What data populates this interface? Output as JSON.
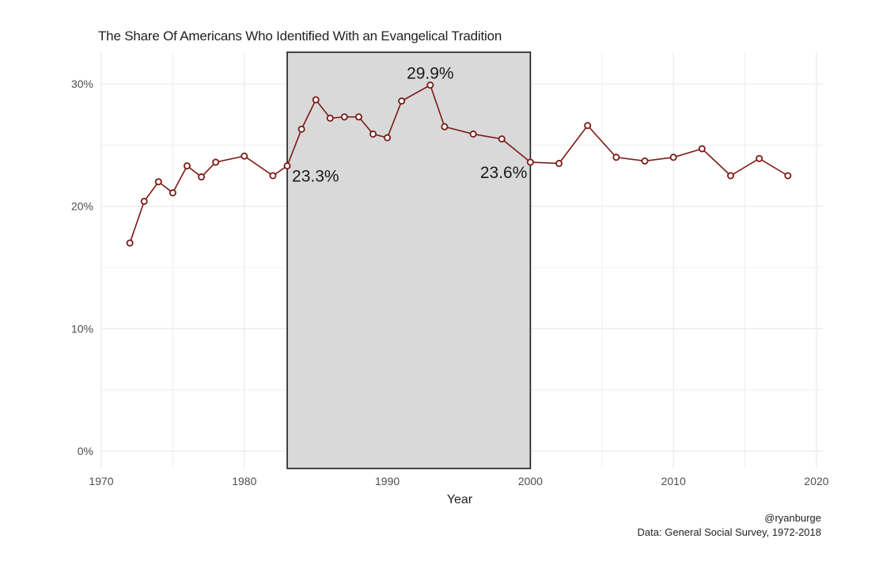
{
  "chart_data": {
    "type": "line",
    "title": "The Share Of Americans Who Identified With an Evangelical Tradition",
    "xlabel": "Year",
    "ylabel": "",
    "xlim": [
      1970,
      2020
    ],
    "ylim": [
      0,
      0.3
    ],
    "x_ticks": [
      1970,
      1980,
      1990,
      2000,
      2010,
      2020
    ],
    "x_tick_labels": [
      "1970",
      "1980",
      "1990",
      "2000",
      "2010",
      "2020"
    ],
    "y_ticks": [
      0,
      0.1,
      0.2,
      0.3
    ],
    "y_tick_labels": [
      "0%",
      "10%",
      "20%",
      "30%"
    ],
    "grid": true,
    "series": [
      {
        "x": [
          1972,
          1973,
          1974,
          1975,
          1976,
          1977,
          1978,
          1980,
          1982,
          1983,
          1984,
          1985,
          1986,
          1987,
          1988,
          1989,
          1990,
          1991,
          1993,
          1994,
          1996,
          1998,
          2000,
          2002,
          2004,
          2006,
          2008,
          2010,
          2012,
          2014,
          2016,
          2018
        ],
        "y": [
          0.17,
          0.204,
          0.22,
          0.211,
          0.233,
          0.224,
          0.236,
          0.241,
          0.225,
          0.233,
          0.263,
          0.287,
          0.272,
          0.273,
          0.273,
          0.259,
          0.256,
          0.286,
          0.299,
          0.265,
          0.259,
          0.255,
          0.236,
          0.235,
          0.266,
          0.24,
          0.237,
          0.24,
          0.247,
          0.225,
          0.239,
          0.225
        ]
      }
    ],
    "highlight_region": {
      "x_start": 1983,
      "x_end": 2000
    },
    "annotations": [
      {
        "x": 1983,
        "y": 0.233,
        "label": "23.3%"
      },
      {
        "x": 1993,
        "y": 0.299,
        "label": "29.9%"
      },
      {
        "x": 2000,
        "y": 0.236,
        "label": "23.6%"
      }
    ],
    "colors": {
      "line": "#7b1a14",
      "marker_fill": "#ffffff",
      "highlight_fill": "#d9d9d9",
      "highlight_stroke": "#1a1a1a",
      "grid": "#ebebeb",
      "tick_text": "#4d4d4d"
    }
  },
  "caption": {
    "handle": "@ryanburge",
    "source": "Data: General Social Survey, 1972-2018"
  }
}
